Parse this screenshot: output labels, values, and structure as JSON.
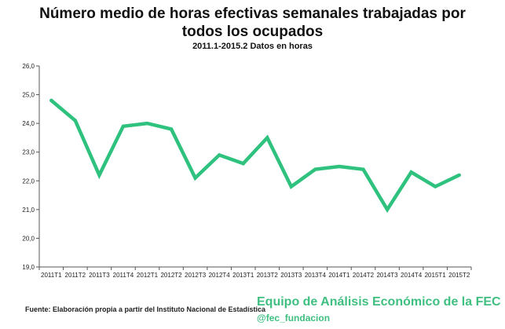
{
  "title_lines": [
    "Número medio de horas efectivas semanales trabajadas por",
    "todos los ocupados"
  ],
  "subtitle": "2011.1-2015.2 Datos en horas",
  "source": "Fuente: Elaboración propia a partir del Instituto Nacional de Estadística",
  "brand": "Equipo de Análisis Económico de la FEC",
  "handle": "@fec_fundacion",
  "colors": {
    "line": "#2ec27e",
    "axis": "#555555",
    "brand": "#3fbf80"
  },
  "chart_data": {
    "type": "line",
    "title": "Número medio de horas efectivas semanales trabajadas por todos los ocupados",
    "subtitle": "2011.1-2015.2 Datos en horas",
    "categories": [
      "2011T1",
      "2011T2",
      "2011T3",
      "2011T4",
      "2012T1",
      "2012T2",
      "2012T3",
      "2012T4",
      "2013T1",
      "2013T2",
      "2013T3",
      "2013T4",
      "2014T1",
      "2014T2",
      "2014T3",
      "2014T4",
      "2015T1",
      "2015T2"
    ],
    "series": [
      {
        "values": [
          24.8,
          24.1,
          22.2,
          23.9,
          24.0,
          23.8,
          22.1,
          22.9,
          22.6,
          23.5,
          21.8,
          22.4,
          22.5,
          22.4,
          21.0,
          22.3,
          21.8,
          22.2
        ]
      }
    ],
    "yticks": [
      "19,0",
      "20,0",
      "21,0",
      "22,0",
      "23,0",
      "24,0",
      "25,0",
      "26,0"
    ],
    "ylim": [
      19,
      26
    ],
    "grid": false,
    "legend": "none"
  }
}
